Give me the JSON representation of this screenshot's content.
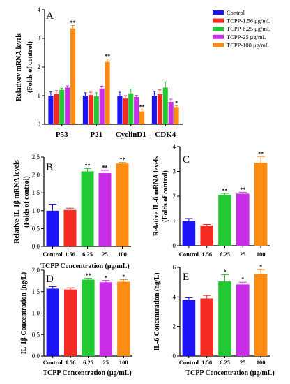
{
  "colors": {
    "blue": "#1d14f5",
    "red": "#f52a20",
    "green": "#22c932",
    "purple": "#c92ee6",
    "orange": "#ff8c12",
    "axis": "#000000"
  },
  "chart_data": [
    {
      "panel": "A",
      "type": "bar",
      "ylabel": [
        "Relativev mRNA levels",
        "(Folds of  control)"
      ],
      "ylim": [
        0,
        4
      ],
      "yticks": [
        "0",
        "1",
        "2",
        "3",
        "4"
      ],
      "categories": [
        "P53",
        "P21",
        "CyclinD1",
        "CDK4"
      ],
      "legend": [
        "Control",
        "TCPP-1.56 μg/mL",
        "TCPP-6.25 μg/mL",
        "TCPP-25 μg/mL",
        "TCPP-100 μg/mL"
      ],
      "legend_position": "top-right",
      "series": [
        {
          "name": "Control",
          "color": "blue",
          "values": [
            1.0,
            1.0,
            1.0,
            1.0
          ],
          "errors": [
            0.13,
            0.1,
            0.12,
            0.15
          ],
          "stars": [
            "",
            "",
            "",
            ""
          ]
        },
        {
          "name": "TCPP-1.56 μg/mL",
          "color": "red",
          "values": [
            1.05,
            1.02,
            0.9,
            1.05
          ],
          "errors": [
            0.12,
            0.1,
            0.1,
            0.15
          ],
          "stars": [
            "",
            "",
            "",
            ""
          ]
        },
        {
          "name": "TCPP-6.25 μg/mL",
          "color": "green",
          "values": [
            1.2,
            0.98,
            1.08,
            1.28
          ],
          "errors": [
            0.06,
            0.12,
            0.15,
            0.2
          ],
          "stars": [
            "",
            "",
            "",
            ""
          ]
        },
        {
          "name": "TCPP-25 μg/mL",
          "color": "purple",
          "values": [
            1.28,
            1.25,
            0.95,
            0.78
          ],
          "errors": [
            0.06,
            0.08,
            0.06,
            0.1
          ],
          "stars": [
            "",
            "",
            "",
            ""
          ]
        },
        {
          "name": "TCPP-100 μg/mL",
          "color": "orange",
          "values": [
            3.35,
            2.18,
            0.45,
            0.6
          ],
          "errors": [
            0.1,
            0.1,
            0.06,
            0.05
          ],
          "stars": [
            "**",
            "**",
            "**",
            "*"
          ]
        }
      ]
    },
    {
      "panel": "B",
      "type": "bar",
      "ylabel": [
        "Relative IL-1β mRNA levels",
        "(Folds of  control)"
      ],
      "xlabel": "TCPP Concentration (μg/mL)",
      "ylim": [
        0,
        2.5
      ],
      "yticks": [
        "0.0",
        "0.5",
        "1.0",
        "1.5",
        "2.0",
        "2.5"
      ],
      "categories": [
        "Control",
        "1.56",
        "6.25",
        "25",
        "100"
      ],
      "colors": [
        "blue",
        "red",
        "green",
        "purple",
        "orange"
      ],
      "values": [
        1.0,
        1.02,
        2.1,
        2.05,
        2.32
      ],
      "errors": [
        0.18,
        0.05,
        0.08,
        0.08,
        0.03
      ],
      "stars": [
        "",
        "",
        "**",
        "**",
        "**"
      ]
    },
    {
      "panel": "C",
      "type": "bar",
      "ylabel": [
        "Relative IL-6 mRNA levels",
        "(Folds of  control)"
      ],
      "ylim": [
        0,
        4
      ],
      "yticks": [
        "0",
        "1",
        "2",
        "3",
        "4"
      ],
      "categories": [
        "Control",
        "1.56",
        "6.25",
        "25",
        "100"
      ],
      "colors": [
        "blue",
        "red",
        "green",
        "purple",
        "orange"
      ],
      "values": [
        1.0,
        0.82,
        2.05,
        2.1,
        3.35
      ],
      "errors": [
        0.1,
        0.04,
        0.06,
        0.06,
        0.25
      ],
      "stars": [
        "",
        "",
        "**",
        "**",
        "**"
      ]
    },
    {
      "panel": "D",
      "type": "bar",
      "ylabel": [
        "IL-1β Concentration (ng/L)"
      ],
      "xlabel": "TCPP Concentration (μg/mL)",
      "ylim": [
        0,
        2.0
      ],
      "yticks": [
        "0.0",
        "0.5",
        "1.0",
        "1.5",
        "2.0"
      ],
      "categories": [
        "Control",
        "1.56",
        "6.25",
        "25",
        "100"
      ],
      "colors": [
        "blue",
        "red",
        "green",
        "purple",
        "orange"
      ],
      "values": [
        1.57,
        1.55,
        1.78,
        1.72,
        1.73
      ],
      "errors": [
        0.05,
        0.04,
        0.03,
        0.04,
        0.05
      ],
      "stars": [
        "",
        "",
        "**",
        "*",
        "*"
      ]
    },
    {
      "panel": "E",
      "type": "bar",
      "ylabel": [
        "IL-6 Concentration (ng/L)"
      ],
      "xlabel": "TCPP Concentration (μg/mL)",
      "ylim": [
        0,
        6
      ],
      "yticks": [
        "0",
        "2",
        "4",
        "6"
      ],
      "categories": [
        "Control",
        "1.56",
        "6.25",
        "25",
        "100"
      ],
      "colors": [
        "blue",
        "red",
        "green",
        "purple",
        "orange"
      ],
      "values": [
        3.8,
        3.9,
        5.05,
        4.85,
        5.55
      ],
      "errors": [
        0.15,
        0.2,
        0.45,
        0.15,
        0.3
      ],
      "stars": [
        "",
        "",
        "*",
        "*",
        "*"
      ]
    }
  ]
}
